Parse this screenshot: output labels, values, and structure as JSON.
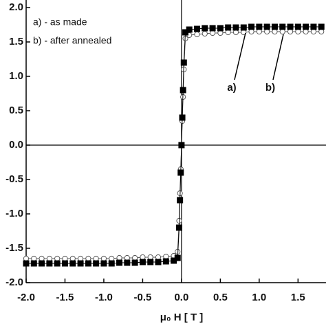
{
  "chart_data": {
    "type": "scatter",
    "x_label": "μ₀ H [ T ]",
    "x": [
      -2.0,
      -1.9,
      -1.8,
      -1.7,
      -1.6,
      -1.5,
      -1.4,
      -1.3,
      -1.2,
      -1.1,
      -1.0,
      -0.9,
      -0.8,
      -0.7,
      -0.6,
      -0.5,
      -0.4,
      -0.3,
      -0.2,
      -0.1,
      -0.05,
      -0.03,
      -0.02,
      -0.01,
      0,
      0.01,
      0.02,
      0.03,
      0.05,
      0.1,
      0.2,
      0.3,
      0.4,
      0.5,
      0.6,
      0.7,
      0.8,
      0.9,
      1.0,
      1.1,
      1.2,
      1.3,
      1.4,
      1.5,
      1.6,
      1.7,
      1.8
    ],
    "series": [
      {
        "name": "b) - after annealed",
        "color": "#555555",
        "marker": "circle",
        "filled": false,
        "values": [
          -1.65,
          -1.65,
          -1.65,
          -1.65,
          -1.65,
          -1.65,
          -1.65,
          -1.65,
          -1.65,
          -1.65,
          -1.65,
          -1.65,
          -1.64,
          -1.64,
          -1.64,
          -1.63,
          -1.63,
          -1.63,
          -1.62,
          -1.61,
          -1.55,
          -1.1,
          -0.7,
          -0.35,
          0,
          0.35,
          0.7,
          1.1,
          1.55,
          1.6,
          1.61,
          1.62,
          1.63,
          1.63,
          1.64,
          1.64,
          1.64,
          1.65,
          1.65,
          1.65,
          1.65,
          1.65,
          1.65,
          1.65,
          1.65,
          1.65,
          1.65
        ]
      },
      {
        "name": "a) - as made",
        "color": "#000000",
        "marker": "square",
        "filled": true,
        "values": [
          -1.72,
          -1.72,
          -1.72,
          -1.72,
          -1.72,
          -1.72,
          -1.72,
          -1.72,
          -1.72,
          -1.72,
          -1.72,
          -1.72,
          -1.71,
          -1.71,
          -1.71,
          -1.7,
          -1.7,
          -1.7,
          -1.69,
          -1.68,
          -1.64,
          -1.2,
          -0.8,
          -0.4,
          0,
          0.4,
          0.8,
          1.2,
          1.64,
          1.68,
          1.69,
          1.7,
          1.7,
          1.7,
          1.71,
          1.71,
          1.71,
          1.72,
          1.72,
          1.72,
          1.72,
          1.72,
          1.72,
          1.72,
          1.72,
          1.72,
          1.72
        ]
      }
    ],
    "annotations": [
      {
        "text": "a)"
      },
      {
        "text": "b)"
      }
    ],
    "xlim": [
      -2.0,
      1.86
    ],
    "ylim": [
      -2.0,
      2.0
    ],
    "xticks": [
      {
        "value": -2,
        "label": "-2.0"
      },
      -1.5,
      {
        "value": -1,
        "label": "-1.0"
      },
      -0.5,
      {
        "value": 0,
        "label": "0.0"
      },
      0.5,
      {
        "value": 1,
        "label": "1.0"
      },
      1.5
    ],
    "yticks": [
      {
        "value": -2,
        "label": "-2.0"
      },
      -1.5,
      {
        "value": -1,
        "label": "-1.0"
      },
      -0.5,
      {
        "value": 0,
        "label": "0.0"
      },
      0.5,
      {
        "value": 1,
        "label": "1.0"
      },
      1.5,
      {
        "value": 2,
        "label": "2.0"
      }
    ],
    "zero_lines": true,
    "legend": "upper left"
  }
}
